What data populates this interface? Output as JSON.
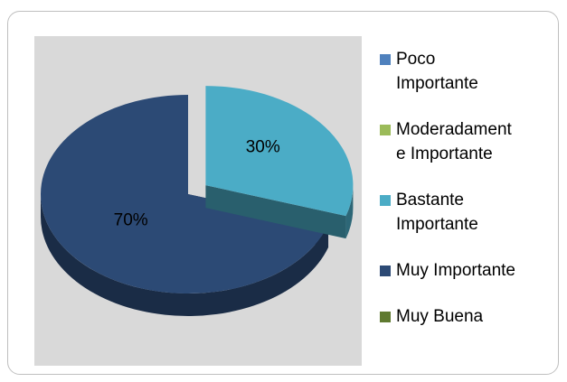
{
  "chart_data": {
    "type": "pie",
    "categories": [
      "Poco Importante",
      "Moderadamente Importante",
      "Bastante Importante",
      "Muy Importante",
      "Muy Buena"
    ],
    "values": [
      0,
      0,
      30,
      70,
      0
    ],
    "value_labels": [
      null,
      null,
      "30%",
      "70%",
      null
    ],
    "colors": [
      "#4f81bd",
      "#9bbb59",
      "#4bacc6",
      "#2c4a75",
      "#5f7a30"
    ],
    "explode": [
      0,
      0,
      1,
      0,
      0
    ],
    "legend": "right"
  }
}
